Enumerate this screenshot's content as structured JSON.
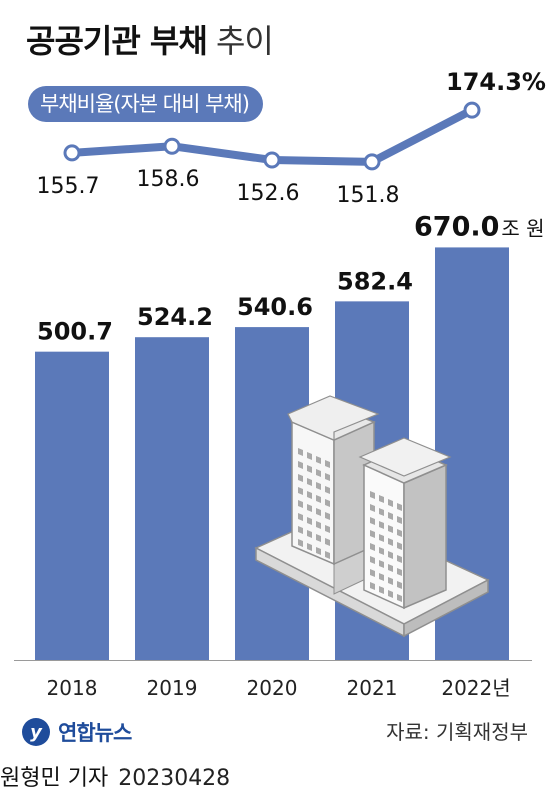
{
  "title": {
    "bold": "공공기관 부채",
    "light": "추이"
  },
  "legend_pill": "부채비율(자본 대비 부채)",
  "source": "자료: 기획재정부",
  "logo_text": "연합뉴스",
  "byline": {
    "author": "원형민 기자",
    "date": "20230428"
  },
  "colors": {
    "bar": "#5b79b9",
    "line": "#5b79b9",
    "marker_fill": "#ffffff"
  },
  "chart_data": [
    {
      "type": "line",
      "title": "부채비율(자본 대비 부채)",
      "x": [
        "2018",
        "2019",
        "2020",
        "2021",
        "2022"
      ],
      "values": [
        155.7,
        158.6,
        152.6,
        151.8,
        174.3
      ],
      "data_labels": [
        "155.7",
        "158.6",
        "152.6",
        "151.8",
        "174.3%"
      ]
    },
    {
      "type": "bar",
      "title": "공공기관 부채",
      "categories": [
        "2018",
        "2019",
        "2020",
        "2021",
        "2022"
      ],
      "category_labels": [
        "2018",
        "2019",
        "2020",
        "2021",
        "2022년"
      ],
      "values": [
        500.7,
        524.2,
        540.6,
        582.4,
        670.0
      ],
      "data_labels": [
        "500.7",
        "524.2",
        "540.6",
        "582.4",
        "670.0"
      ],
      "last_label_unit": "조 원"
    }
  ]
}
